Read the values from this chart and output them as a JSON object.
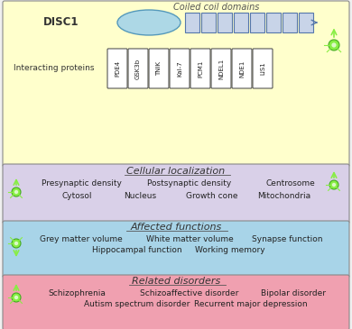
{
  "bg_color": "#f0f0f0",
  "section_colors": {
    "top": "#ffffcc",
    "localization": "#d9d0e8",
    "functions": "#a8d4e8",
    "disorders": "#f0a0b0"
  },
  "disc1_label": "DISC1",
  "coiled_coil_label": "Coiled coil domains",
  "interacting_label": "Interacting proteins",
  "proteins": [
    "PDE4",
    "GSK3b",
    "TNIK",
    "Kal-7",
    "PCM1",
    "NDEL1",
    "NDE1",
    "LIS1"
  ],
  "ellipse_color": "#add8e6",
  "box_color": "#c8d4e8",
  "section1_title": "Cellular localization",
  "section1_row1": [
    "Presynaptic density",
    "Postsynaptic density",
    "Centrosome"
  ],
  "section1_row2": [
    "Cytosol",
    "Nucleus",
    "Growth cone",
    "Mitochondria"
  ],
  "section2_title": "Affected functions",
  "section2_row1": [
    "Grey matter volume",
    "White matter volume",
    "Synapse function"
  ],
  "section2_row2": [
    "Hippocampal function",
    "Working memory"
  ],
  "section3_title": "Related disorders",
  "section3_row1": [
    "Schizophrenia",
    "Schizoaffective disorder",
    "Bipolar disorder"
  ],
  "section3_row2": [
    "Autism spectrum disorder",
    "Recurrent major depression"
  ],
  "neuron_color": "#88ee44",
  "neuron_edge": "#44aa22",
  "border_color": "#888888"
}
